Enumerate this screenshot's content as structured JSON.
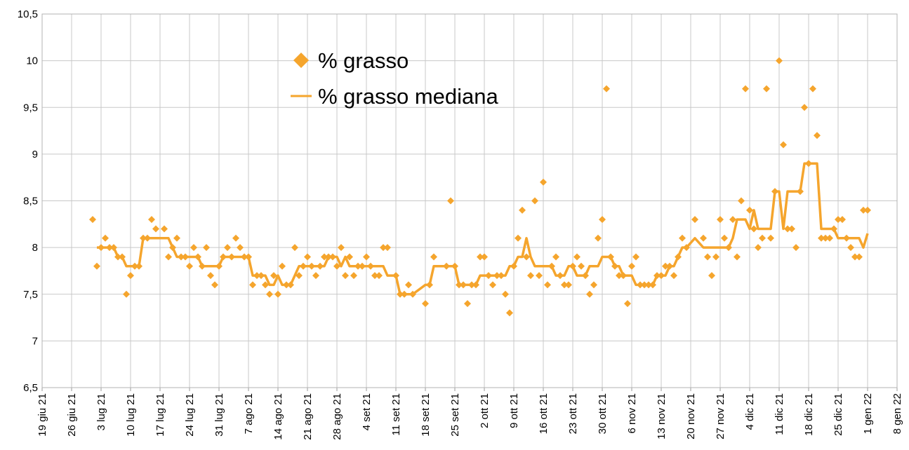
{
  "chart_data": {
    "type": "scatter",
    "x": [
      "2021-07-01",
      "2021-07-02",
      "2021-07-03",
      "2021-07-04",
      "2021-07-05",
      "2021-07-06",
      "2021-07-07",
      "2021-07-08",
      "2021-07-09",
      "2021-07-10",
      "2021-07-11",
      "2021-07-12",
      "2021-07-13",
      "2021-07-14",
      "2021-07-15",
      "2021-07-16",
      "2021-07-18",
      "2021-07-19",
      "2021-07-20",
      "2021-07-21",
      "2021-07-22",
      "2021-07-23",
      "2021-07-24",
      "2021-07-25",
      "2021-07-26",
      "2021-07-27",
      "2021-07-28",
      "2021-07-29",
      "2021-07-30",
      "2021-07-31",
      "2021-08-01",
      "2021-08-02",
      "2021-08-03",
      "2021-08-04",
      "2021-08-05",
      "2021-08-06",
      "2021-08-07",
      "2021-08-08",
      "2021-08-09",
      "2021-08-10",
      "2021-08-11",
      "2021-08-12",
      "2021-08-13",
      "2021-08-14",
      "2021-08-15",
      "2021-08-16",
      "2021-08-17",
      "2021-08-18",
      "2021-08-19",
      "2021-08-20",
      "2021-08-21",
      "2021-08-22",
      "2021-08-23",
      "2021-08-24",
      "2021-08-25",
      "2021-08-26",
      "2021-08-27",
      "2021-08-28",
      "2021-08-29",
      "2021-08-30",
      "2021-08-31",
      "2021-09-01",
      "2021-09-02",
      "2021-09-03",
      "2021-09-04",
      "2021-09-05",
      "2021-09-06",
      "2021-09-07",
      "2021-09-08",
      "2021-09-09",
      "2021-09-11",
      "2021-09-12",
      "2021-09-13",
      "2021-09-14",
      "2021-09-15",
      "2021-09-18",
      "2021-09-19",
      "2021-09-20",
      "2021-09-23",
      "2021-09-24",
      "2021-09-25",
      "2021-09-26",
      "2021-09-27",
      "2021-09-28",
      "2021-09-29",
      "2021-09-30",
      "2021-10-01",
      "2021-10-02",
      "2021-10-03",
      "2021-10-04",
      "2021-10-05",
      "2021-10-06",
      "2021-10-07",
      "2021-10-08",
      "2021-10-09",
      "2021-10-10",
      "2021-10-11",
      "2021-10-12",
      "2021-10-13",
      "2021-10-14",
      "2021-10-15",
      "2021-10-16",
      "2021-10-17",
      "2021-10-18",
      "2021-10-19",
      "2021-10-20",
      "2021-10-21",
      "2021-10-22",
      "2021-10-23",
      "2021-10-24",
      "2021-10-25",
      "2021-10-26",
      "2021-10-27",
      "2021-10-28",
      "2021-10-29",
      "2021-10-30",
      "2021-10-31",
      "2021-11-01",
      "2021-11-02",
      "2021-11-03",
      "2021-11-04",
      "2021-11-05",
      "2021-11-06",
      "2021-11-07",
      "2021-11-08",
      "2021-11-09",
      "2021-11-10",
      "2021-11-11",
      "2021-11-12",
      "2021-11-13",
      "2021-11-14",
      "2021-11-15",
      "2021-11-16",
      "2021-11-17",
      "2021-11-18",
      "2021-11-19",
      "2021-11-21",
      "2021-11-23",
      "2021-11-24",
      "2021-11-25",
      "2021-11-26",
      "2021-11-27",
      "2021-11-28",
      "2021-11-29",
      "2021-11-30",
      "2021-12-01",
      "2021-12-02",
      "2021-12-03",
      "2021-12-04",
      "2021-12-05",
      "2021-12-06",
      "2021-12-07",
      "2021-12-08",
      "2021-12-09",
      "2021-12-10",
      "2021-12-11",
      "2021-12-12",
      "2021-12-13",
      "2021-12-14",
      "2021-12-15",
      "2021-12-16",
      "2021-12-17",
      "2021-12-18",
      "2021-12-19",
      "2021-12-20",
      "2021-12-21",
      "2021-12-22",
      "2021-12-23",
      "2021-12-24",
      "2021-12-25",
      "2021-12-26",
      "2021-12-27",
      "2021-12-28",
      "2021-12-29",
      "2021-12-30",
      "2021-12-31",
      "2022-01-01"
    ],
    "series": [
      {
        "name": "% grasso",
        "type": "scatter",
        "color": "#f5a52d",
        "values": [
          8.3,
          7.8,
          8.0,
          8.1,
          8.0,
          8.0,
          7.9,
          7.9,
          7.5,
          7.7,
          7.8,
          7.8,
          8.1,
          8.1,
          8.3,
          8.2,
          8.2,
          7.9,
          8.0,
          8.1,
          7.9,
          7.9,
          7.8,
          8.0,
          7.9,
          7.8,
          8.0,
          7.7,
          7.6,
          7.8,
          7.9,
          8.0,
          7.9,
          8.1,
          8.0,
          7.9,
          7.9,
          7.6,
          7.7,
          7.7,
          7.6,
          7.5,
          7.7,
          7.5,
          7.8,
          7.6,
          7.6,
          8.0,
          7.7,
          7.8,
          7.9,
          7.8,
          7.7,
          7.8,
          7.9,
          7.9,
          7.9,
          7.8,
          8.0,
          7.7,
          7.9,
          7.7,
          7.8,
          7.8,
          7.9,
          7.8,
          7.7,
          7.7,
          8.0,
          8.0,
          7.7,
          7.5,
          7.5,
          7.6,
          7.5,
          7.4,
          7.6,
          7.9,
          7.8,
          8.5,
          7.8,
          7.6,
          7.6,
          7.4,
          7.6,
          7.6,
          7.9,
          7.9,
          7.7,
          7.6,
          7.7,
          7.7,
          7.5,
          7.3,
          7.8,
          8.1,
          8.4,
          7.9,
          7.7,
          8.5,
          7.7,
          8.7,
          7.6,
          7.8,
          7.9,
          7.7,
          7.6,
          7.6,
          7.8,
          7.9,
          7.8,
          7.7,
          7.5,
          7.6,
          8.1,
          8.3,
          9.7,
          7.9,
          7.8,
          7.7,
          7.7,
          7.4,
          7.8,
          7.9,
          7.6,
          7.6,
          7.6,
          7.6,
          7.7,
          7.7,
          7.8,
          7.8,
          7.7,
          7.9,
          8.1,
          8.0,
          8.3,
          8.1,
          7.9,
          7.7,
          7.9,
          8.3,
          8.1,
          8.0,
          8.3,
          7.9,
          8.5,
          9.7,
          8.4,
          8.2,
          8.0,
          8.1,
          9.7,
          8.1,
          8.6,
          10.0,
          9.1,
          8.2,
          8.2,
          8.0,
          8.6,
          9.5,
          8.9,
          9.7,
          9.2,
          8.1,
          8.1,
          8.1,
          8.2,
          8.3,
          8.3,
          8.1,
          8.0,
          7.9,
          7.9,
          8.4,
          8.4
        ]
      },
      {
        "name": "% grasso mediana",
        "type": "line",
        "color": "#f5a52d",
        "values": [
          null,
          8.0,
          8.0,
          8.0,
          8.0,
          8.0,
          7.9,
          7.9,
          7.8,
          7.8,
          7.8,
          7.8,
          8.1,
          8.1,
          8.1,
          8.1,
          8.1,
          8.1,
          8.0,
          7.9,
          7.9,
          7.9,
          7.9,
          7.9,
          7.9,
          7.8,
          7.8,
          7.8,
          7.8,
          7.8,
          7.9,
          7.9,
          7.9,
          7.9,
          7.9,
          7.9,
          7.9,
          7.7,
          7.7,
          7.7,
          7.7,
          7.6,
          7.6,
          7.7,
          7.6,
          7.6,
          7.6,
          7.7,
          7.8,
          7.8,
          7.8,
          7.8,
          7.8,
          7.8,
          7.8,
          7.9,
          7.9,
          7.9,
          7.8,
          7.9,
          7.8,
          7.8,
          7.8,
          7.8,
          7.8,
          7.8,
          7.8,
          7.8,
          7.8,
          7.7,
          7.7,
          7.5,
          7.5,
          7.5,
          7.5,
          7.6,
          7.6,
          7.8,
          7.8,
          7.8,
          7.8,
          7.6,
          7.6,
          7.6,
          7.6,
          7.6,
          7.7,
          7.7,
          7.7,
          7.7,
          7.7,
          7.7,
          7.7,
          7.8,
          7.8,
          7.9,
          7.9,
          8.1,
          7.9,
          7.8,
          7.8,
          7.8,
          7.8,
          7.8,
          7.7,
          7.7,
          7.7,
          7.8,
          7.8,
          7.7,
          7.7,
          7.7,
          7.8,
          7.8,
          7.8,
          7.9,
          7.9,
          7.9,
          7.8,
          7.8,
          7.7,
          7.7,
          7.7,
          7.6,
          7.6,
          7.6,
          7.6,
          7.6,
          7.7,
          7.7,
          7.7,
          7.8,
          7.8,
          7.9,
          8.0,
          8.0,
          8.1,
          8.0,
          8.0,
          8.0,
          8.0,
          8.0,
          8.0,
          8.0,
          8.1,
          8.3,
          8.3,
          8.3,
          8.2,
          8.4,
          8.2,
          8.2,
          8.2,
          8.2,
          8.6,
          8.6,
          8.2,
          8.6,
          8.6,
          8.6,
          8.6,
          8.9,
          8.9,
          8.9,
          8.9,
          8.2,
          8.2,
          8.2,
          8.2,
          8.1,
          8.1,
          8.1,
          8.1,
          8.1,
          8.1,
          8.0,
          8.15
        ]
      }
    ],
    "xlim": [
      "2021-06-19",
      "2022-01-08"
    ],
    "xticks": [
      {
        "value": "2021-06-19",
        "label": "19 giu 21"
      },
      {
        "value": "2021-06-26",
        "label": "26 giu 21"
      },
      {
        "value": "2021-07-03",
        "label": "3 lug 21"
      },
      {
        "value": "2021-07-10",
        "label": "10 lug 21"
      },
      {
        "value": "2021-07-17",
        "label": "17 lug 21"
      },
      {
        "value": "2021-07-24",
        "label": "24 lug 21"
      },
      {
        "value": "2021-07-31",
        "label": "31 lug 21"
      },
      {
        "value": "2021-08-07",
        "label": "7 ago 21"
      },
      {
        "value": "2021-08-14",
        "label": "14 ago 21"
      },
      {
        "value": "2021-08-21",
        "label": "21 ago 21"
      },
      {
        "value": "2021-08-28",
        "label": "28 ago 21"
      },
      {
        "value": "2021-09-04",
        "label": "4 set 21"
      },
      {
        "value": "2021-09-11",
        "label": "11 set 21"
      },
      {
        "value": "2021-09-18",
        "label": "18 set 21"
      },
      {
        "value": "2021-09-25",
        "label": "25 set 21"
      },
      {
        "value": "2021-10-02",
        "label": "2 ott 21"
      },
      {
        "value": "2021-10-09",
        "label": "9 ott 21"
      },
      {
        "value": "2021-10-16",
        "label": "16 ott 21"
      },
      {
        "value": "2021-10-23",
        "label": "23 ott 21"
      },
      {
        "value": "2021-10-30",
        "label": "30 ott 21"
      },
      {
        "value": "2021-11-06",
        "label": "6 nov 21"
      },
      {
        "value": "2021-11-13",
        "label": "13 nov 21"
      },
      {
        "value": "2021-11-20",
        "label": "20 nov 21"
      },
      {
        "value": "2021-11-27",
        "label": "27 nov 21"
      },
      {
        "value": "2021-12-04",
        "label": "4 dic 21"
      },
      {
        "value": "2021-12-11",
        "label": "11 dic 21"
      },
      {
        "value": "2021-12-18",
        "label": "18 dic 21"
      },
      {
        "value": "2021-12-25",
        "label": "25 dic 21"
      },
      {
        "value": "2022-01-01",
        "label": "1 gen 22"
      },
      {
        "value": "2022-01-08",
        "label": "8 gen 22"
      }
    ],
    "ylim": [
      6.5,
      10.5
    ],
    "yticks": [
      {
        "value": 6.5,
        "label": "6,5"
      },
      7,
      {
        "value": 7.5,
        "label": "7,5"
      },
      8,
      {
        "value": 8.5,
        "label": "8,5"
      },
      9,
      {
        "value": 9.5,
        "label": "9,5"
      },
      10,
      {
        "value": 10.5,
        "label": "10,5"
      }
    ],
    "grid": true,
    "legend": "top-left"
  }
}
